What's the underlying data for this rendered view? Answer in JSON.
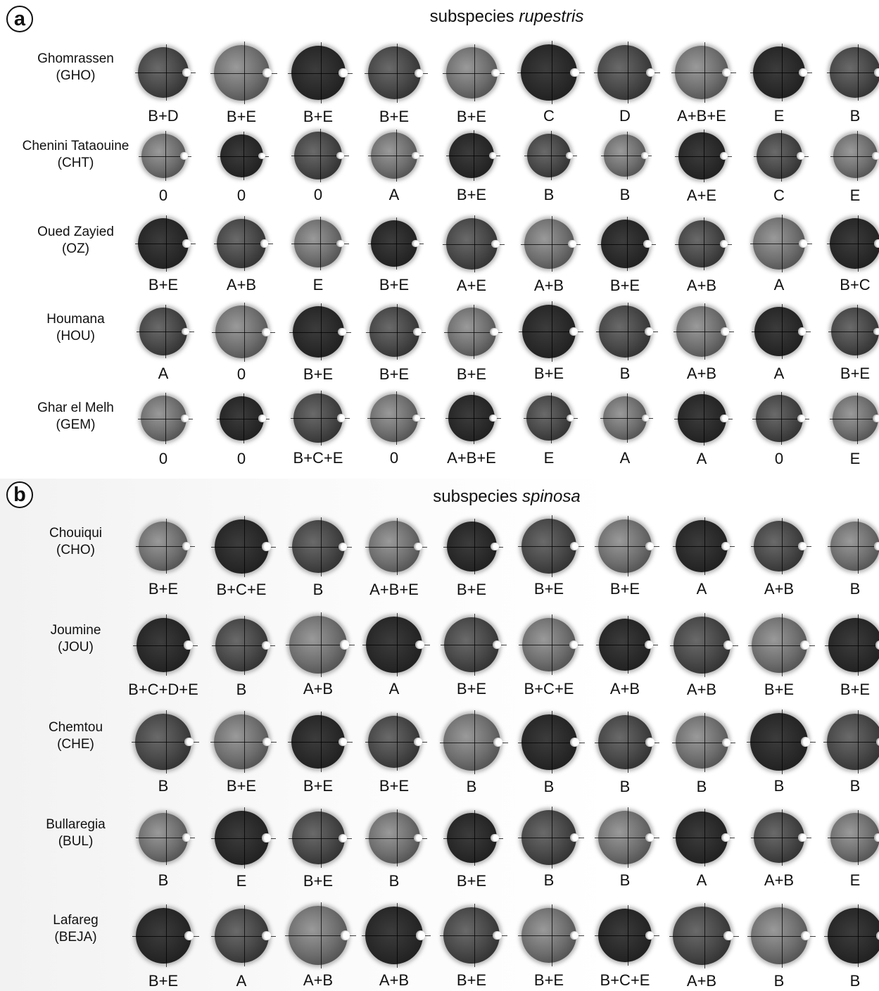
{
  "panels": [
    {
      "badge": "a",
      "title_prefix": "subspecies ",
      "title_italic": "rupestris",
      "rows": [
        {
          "name": "Ghomrassen",
          "code": "(GHO)",
          "size": 76,
          "seeds": [
            "B+D",
            "B+E",
            "B+E",
            "B+E",
            "B+E",
            "C",
            "D",
            "A+B+E",
            "E",
            "B"
          ]
        },
        {
          "name": "Chenini Tataouine",
          "code": "(CHT)",
          "size": 64,
          "seeds": [
            "0",
            "0",
            "0",
            "A",
            "B+E",
            "B",
            "B",
            "A+E",
            "C",
            "E"
          ]
        },
        {
          "name": "Oued Zayied",
          "code": "(OZ)",
          "size": 70,
          "seeds": [
            "B+E",
            "A+B",
            "E",
            "B+E",
            "A+E",
            "A+B",
            "B+E",
            "A+B",
            "A",
            "B+C"
          ]
        },
        {
          "name": "Houmana",
          "code": "(HOU)",
          "size": 72,
          "seeds": [
            "A",
            "0",
            "B+E",
            "B+E",
            "B+E",
            "B+E",
            "B",
            "A+B",
            "A",
            "B+E"
          ]
        },
        {
          "name": "Ghar el Melh",
          "code": "(GEM)",
          "size": 66,
          "seeds": [
            "0",
            "0",
            "B+C+E",
            "0",
            "A+B+E",
            "E",
            "A",
            "A",
            "0",
            "E"
          ]
        }
      ]
    },
    {
      "badge": "b",
      "title_prefix": "subspecies ",
      "title_italic": "spinosa",
      "rows": [
        {
          "name": "Chouiqui",
          "code": "(CHO)",
          "size": 74,
          "seeds": [
            "B+E",
            "B+C+E",
            "B",
            "A+B+E",
            "B+E",
            "B+E",
            "B+E",
            "A",
            "A+B",
            "B"
          ]
        },
        {
          "name": "Joumine",
          "code": "(JOU)",
          "size": 78,
          "seeds": [
            "B+C+D+E",
            "B",
            "A+B",
            "A",
            "B+E",
            "B+C+E",
            "A+B",
            "A+B",
            "B+E",
            "B+E"
          ]
        },
        {
          "name": "Chemtou",
          "code": "(CHE)",
          "size": 78,
          "seeds": [
            "B",
            "B+E",
            "B+E",
            "B+E",
            "B",
            "B",
            "B",
            "B",
            "B",
            "B"
          ]
        },
        {
          "name": "Bullaregia",
          "code": "(BUL)",
          "size": 74,
          "seeds": [
            "B",
            "E",
            "B+E",
            "B",
            "B+E",
            "B",
            "B",
            "A",
            "A+B",
            "E"
          ]
        },
        {
          "name": "Lafareg",
          "code": "(BEJA)",
          "size": 80,
          "seeds": [
            "B+E",
            "A",
            "A+B",
            "A+B",
            "B+E",
            "B+E",
            "B+C+E",
            "A+B",
            "B",
            "B"
          ]
        }
      ]
    }
  ]
}
